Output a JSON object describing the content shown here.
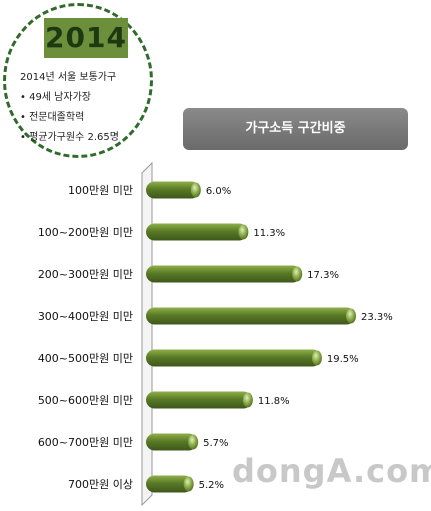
{
  "info": {
    "year": "2014",
    "title": "2014년 서울 보통가구",
    "bullets": [
      "• 49세  남자가장",
      "• 전문대졸학력",
      "• 평균가구원수  2.65명"
    ]
  },
  "watermark": "dongA.com",
  "colors": {
    "bar": "#4d6b22",
    "bar_highlight": "#8fb04a",
    "circle": "#2f6b2a"
  },
  "chart_data": {
    "type": "bar",
    "orientation": "horizontal",
    "title": "가구소득 구간비중",
    "categories": [
      "100만원 미만",
      "100~200만원 미만",
      "200~300만원 미만",
      "300~400만원 미만",
      "400~500만원 미만",
      "500~600만원 미만",
      "600~700만원 미만",
      "700만원 이상"
    ],
    "values": [
      6.0,
      11.3,
      17.3,
      23.3,
      19.5,
      11.8,
      5.7,
      5.2
    ],
    "value_labels": [
      "6.0%",
      "11.3%",
      "17.3%",
      "23.3%",
      "19.5%",
      "11.8%",
      "5.7%",
      "5.2%"
    ],
    "unit": "%",
    "xlim": [
      0,
      25
    ],
    "grid": false
  }
}
